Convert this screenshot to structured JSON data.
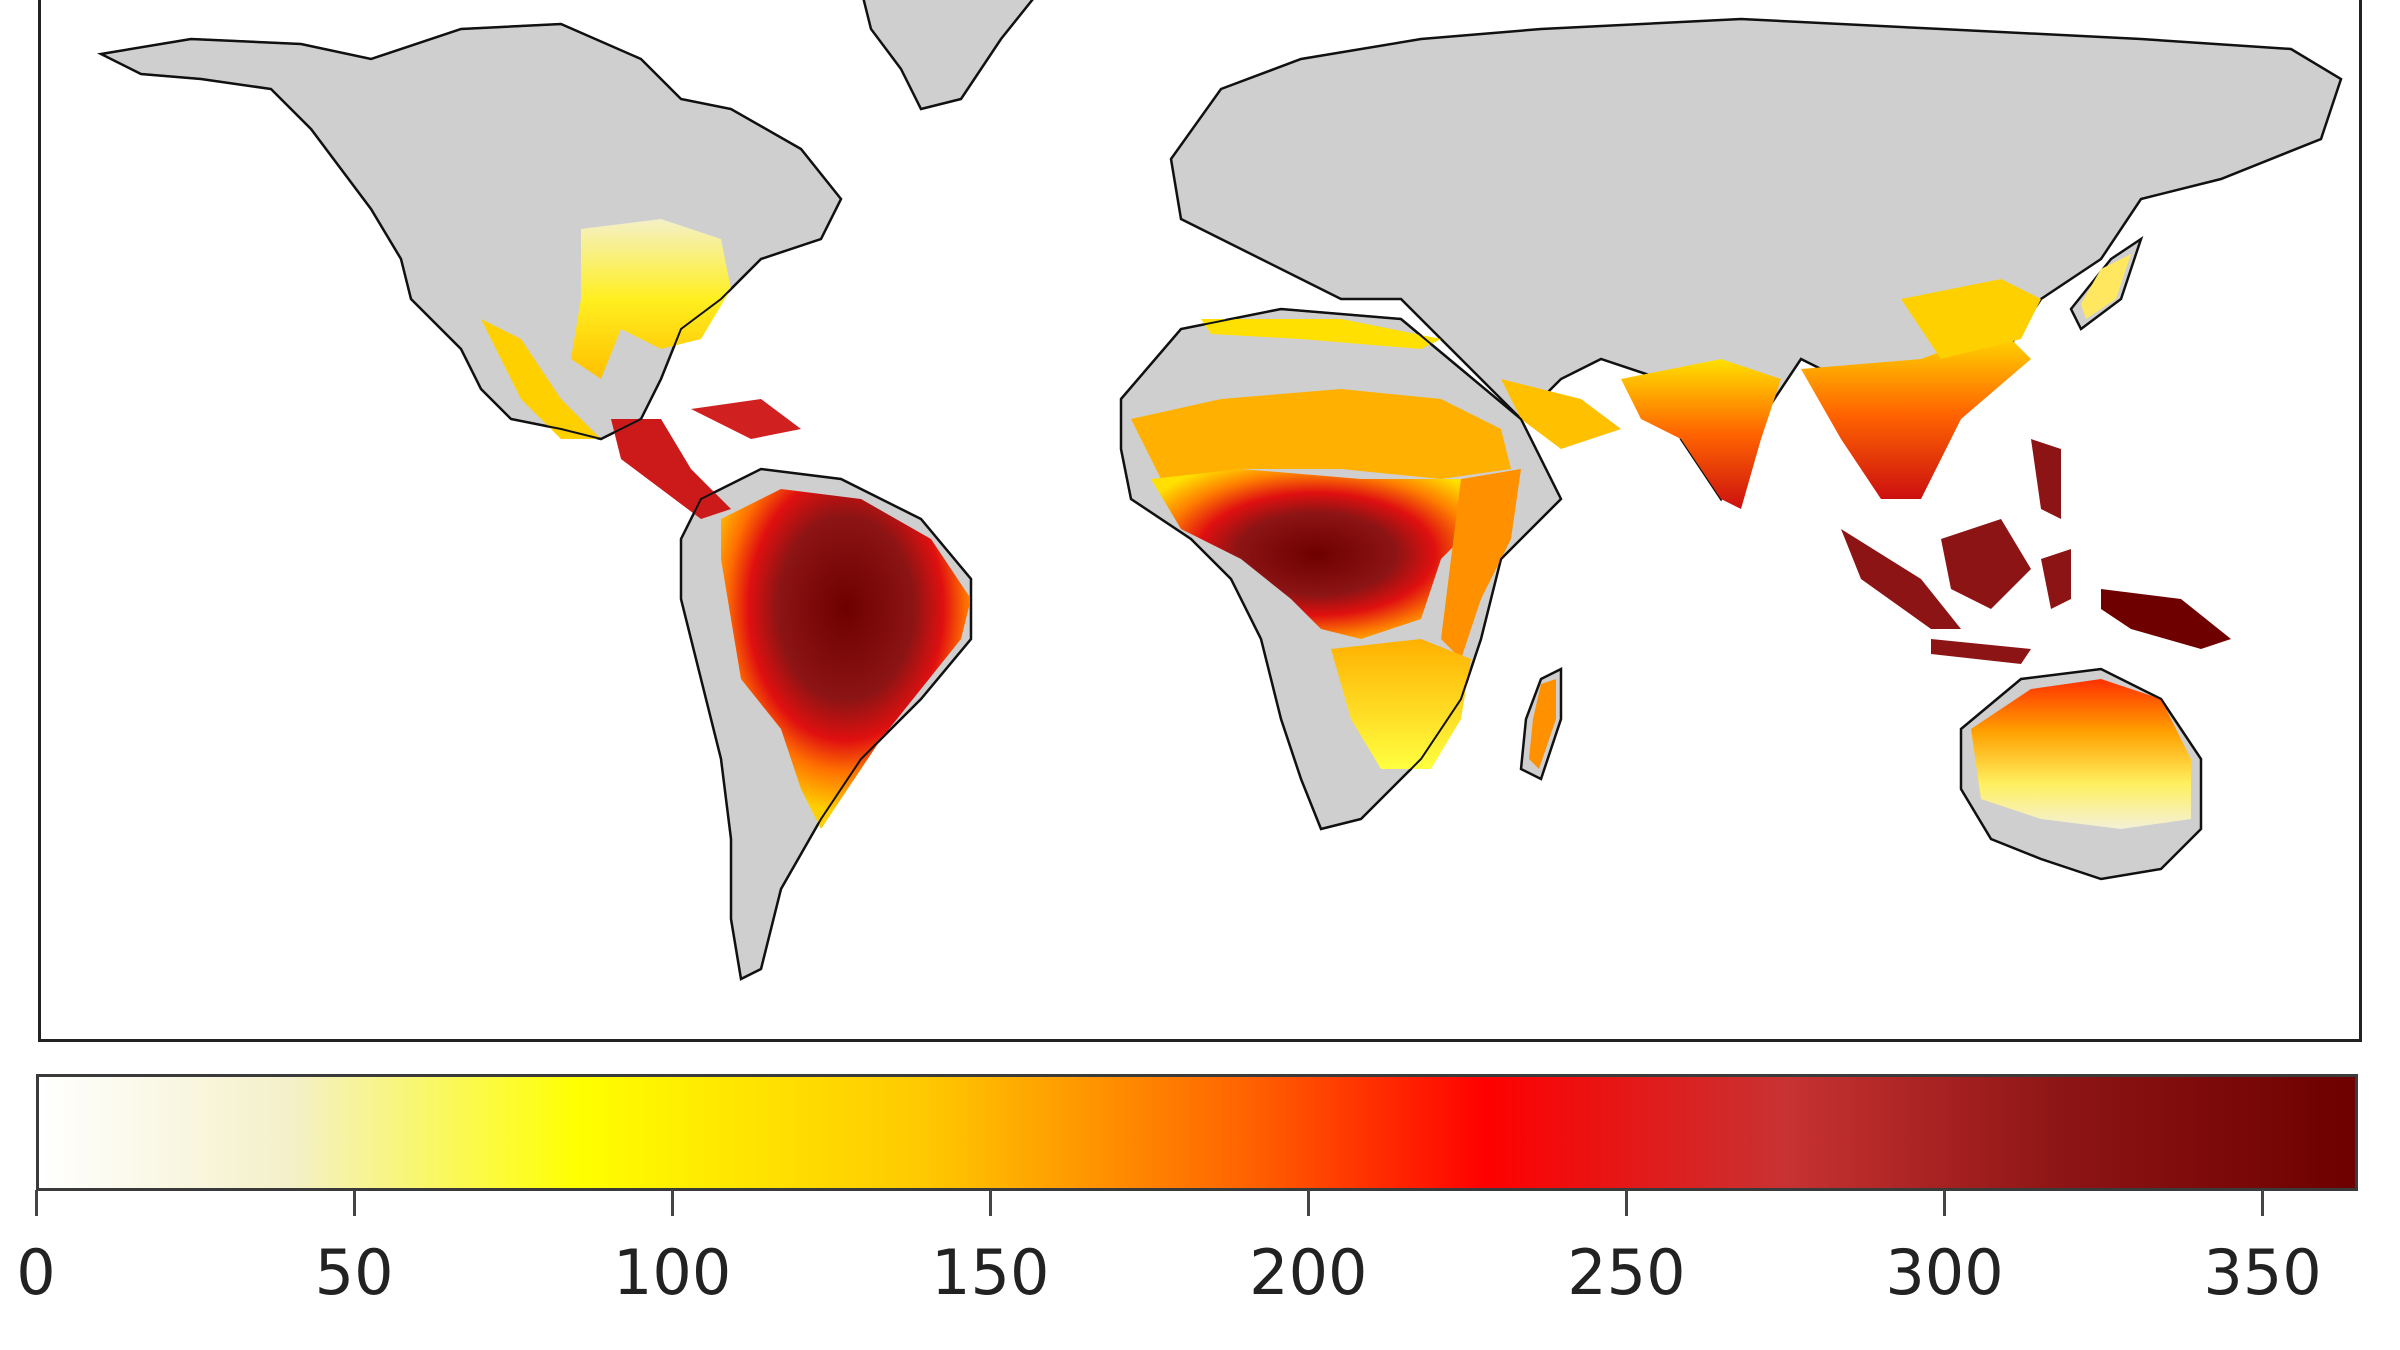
{
  "map": {
    "kind": "choropleth-world",
    "colors": {
      "land_no_data": "#cfcfcf",
      "ocean": "#ffffff",
      "coastline": "#111111"
    },
    "regions": [
      {
        "name": "Amazon basin",
        "value": 350
      },
      {
        "name": "Central Africa",
        "value": 340
      },
      {
        "name": "West Africa coast",
        "value": 310
      },
      {
        "name": "Indonesia",
        "value": 360
      },
      {
        "name": "New Guinea",
        "value": 350
      },
      {
        "name": "Central America",
        "value": 300
      },
      {
        "name": "Southeast Asia",
        "value": 260
      },
      {
        "name": "India",
        "value": 240
      },
      {
        "name": "Southeast USA",
        "value": 110
      },
      {
        "name": "East Africa",
        "value": 150
      },
      {
        "name": "Northern Australia",
        "value": 200
      },
      {
        "name": "Southern Africa",
        "value": 90
      },
      {
        "name": "Madagascar",
        "value": 200
      },
      {
        "name": "Southern China",
        "value": 140
      },
      {
        "name": "Sahel",
        "value": 160
      }
    ]
  },
  "colorbar": {
    "min": 0,
    "max": 365,
    "stops": [
      {
        "value": 0,
        "color": "#ffffff"
      },
      {
        "value": 40,
        "color": "#f4f0c8"
      },
      {
        "value": 85,
        "color": "#ffff00"
      },
      {
        "value": 140,
        "color": "#ffc800"
      },
      {
        "value": 190,
        "color": "#ff6400"
      },
      {
        "value": 228,
        "color": "#ff0000"
      },
      {
        "value": 275,
        "color": "#c83232"
      },
      {
        "value": 320,
        "color": "#8c1414"
      },
      {
        "value": 365,
        "color": "#6e0000"
      }
    ],
    "ticks": [
      "0",
      "50",
      "100",
      "150",
      "200",
      "250",
      "300",
      "350"
    ]
  }
}
